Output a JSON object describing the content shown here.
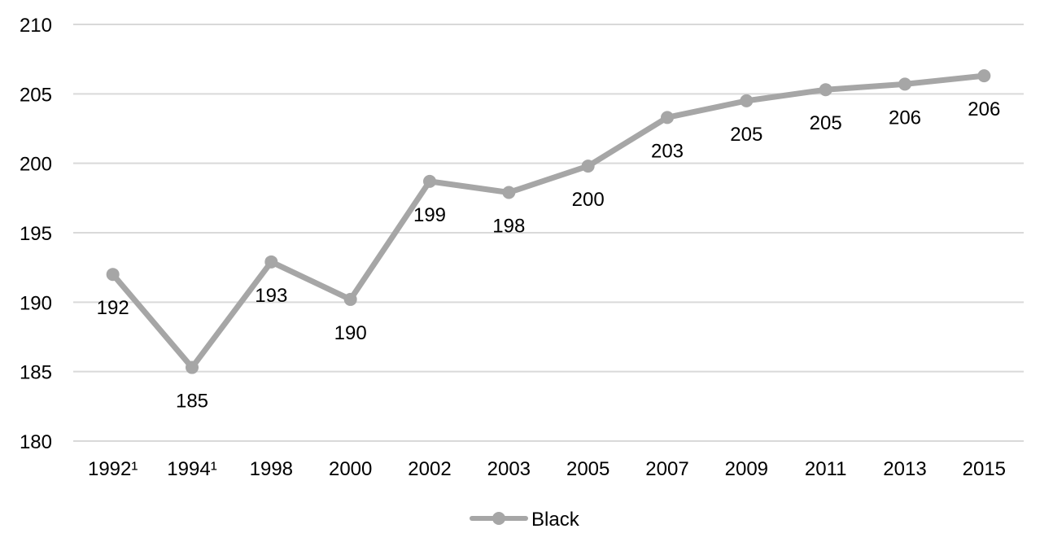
{
  "chart_data": {
    "type": "line",
    "categories": [
      "1992¹",
      "1994¹",
      "1998",
      "2000",
      "2002",
      "2003",
      "2005",
      "2007",
      "2009",
      "2011",
      "2013",
      "2015"
    ],
    "series": [
      {
        "name": "Black",
        "values": [
          192.0,
          185.3,
          192.9,
          190.2,
          198.7,
          197.9,
          199.8,
          203.3,
          204.5,
          205.3,
          205.7,
          206.3
        ],
        "labels": [
          "192",
          "185",
          "193",
          "190",
          "199",
          "198",
          "200",
          "203",
          "205",
          "205",
          "206",
          "206"
        ],
        "color": "#a6a6a6"
      }
    ],
    "yticks": [
      "180",
      "185",
      "190",
      "195",
      "200",
      "205",
      "210"
    ],
    "ylim": [
      180,
      210
    ],
    "grid": true,
    "legend": "bottom-center",
    "xlabel": "",
    "ylabel": "",
    "title": ""
  }
}
